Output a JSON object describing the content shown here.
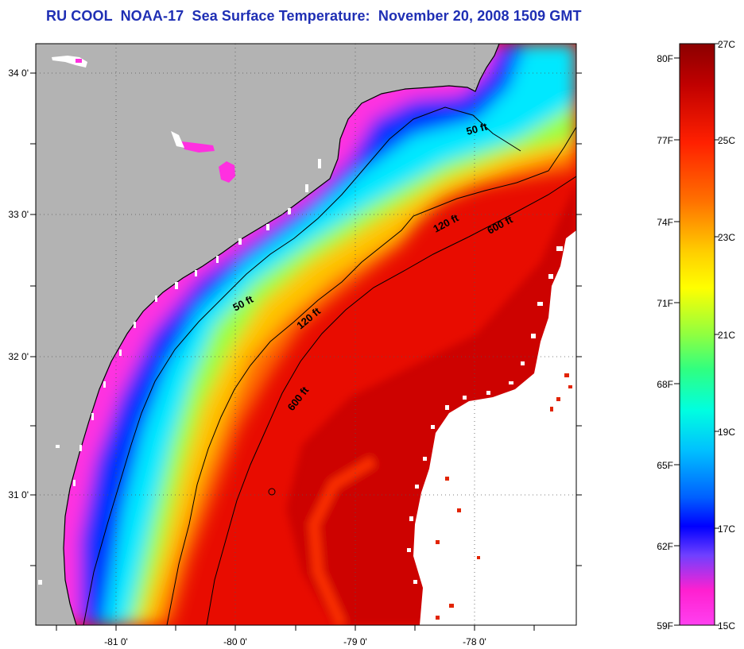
{
  "title": "RU COOL  NOAA-17  Sea Surface Temperature:  November 20, 2008 1509 GMT",
  "colors": {
    "title": "#1f2fb4",
    "land": "#b3b3b3",
    "no_data": "#ffffff"
  },
  "map": {
    "lat_ticks": [
      "34 0'",
      "33 0'",
      "32 0'",
      "31 0'"
    ],
    "lon_ticks": [
      "-81 0'",
      "-80 0'",
      "-79 0'",
      "-78 0'"
    ],
    "isobaths": [
      {
        "name": "50 ft",
        "labels": [
          "50 ft",
          "50 ft"
        ]
      },
      {
        "name": "120 ft",
        "labels": [
          "120 ft",
          "120 ft"
        ]
      },
      {
        "name": "600 ft",
        "labels": [
          "600 ft",
          "600 ft"
        ]
      }
    ]
  },
  "colorbar": {
    "fahrenheit_labels": [
      "80F",
      "77F",
      "74F",
      "71F",
      "68F",
      "65F",
      "62F",
      "59F"
    ],
    "celsius_labels": [
      "27C",
      "25C",
      "23C",
      "21C",
      "19C",
      "17C",
      "15C"
    ],
    "gradient_stops": [
      "#8b0000",
      "#c80000",
      "#ff2a00",
      "#ff7a00",
      "#ffd000",
      "#ffff00",
      "#a8ff40",
      "#30ff70",
      "#00ffd8",
      "#00c8ff",
      "#0070ff",
      "#0000ff",
      "#8040ff",
      "#ff20d0",
      "#ff40f0"
    ]
  }
}
